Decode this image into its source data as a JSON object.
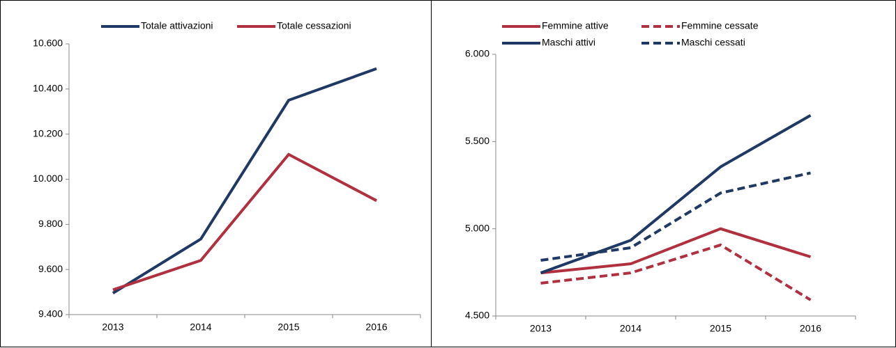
{
  "chart_data": [
    {
      "type": "line",
      "categories": [
        "2013",
        "2014",
        "2015",
        "2016"
      ],
      "series": [
        {
          "name": "Totale attivazioni",
          "color": "#1f3864",
          "dashed": false,
          "values": [
            9495,
            9735,
            10350,
            10490
          ]
        },
        {
          "name": "Totale cessazioni",
          "color": "#b0303f",
          "dashed": false,
          "values": [
            9510,
            9640,
            10110,
            9905
          ]
        }
      ],
      "ylim": [
        9400,
        10600
      ],
      "yticks": [
        {
          "value": 9400,
          "label": "9.400"
        },
        {
          "value": 9600,
          "label": "9.600"
        },
        {
          "value": 9800,
          "label": "9.800"
        },
        {
          "value": 10000,
          "label": "10.000"
        },
        {
          "value": 10200,
          "label": "10.200"
        },
        {
          "value": 10400,
          "label": "10.400"
        },
        {
          "value": 10600,
          "label": "10.600"
        }
      ],
      "grid": false,
      "legend": "top"
    },
    {
      "type": "line",
      "categories": [
        "2013",
        "2014",
        "2015",
        "2016"
      ],
      "series": [
        {
          "name": "Femmine attive",
          "color": "#b0303f",
          "dashed": false,
          "values": [
            4747,
            4799,
            5000,
            4839
          ]
        },
        {
          "name": "Femmine cessate",
          "color": "#b0303f",
          "dashed": true,
          "values": [
            4688,
            4747,
            4907,
            4592
          ]
        },
        {
          "name": "Maschi attivi",
          "color": "#1f3864",
          "dashed": false,
          "values": [
            4747,
            4934,
            5355,
            5650
          ]
        },
        {
          "name": "Maschi cessati",
          "color": "#1f3864",
          "dashed": true,
          "values": [
            4819,
            4891,
            5205,
            5320
          ]
        }
      ],
      "ylim": [
        4500,
        6000
      ],
      "yticks": [
        {
          "value": 4500,
          "label": "4.500"
        },
        {
          "value": 5000,
          "label": "5.000"
        },
        {
          "value": 5500,
          "label": "5.500"
        },
        {
          "value": 6000,
          "label": "6.000"
        }
      ],
      "grid": false,
      "legend": "top-left"
    }
  ]
}
